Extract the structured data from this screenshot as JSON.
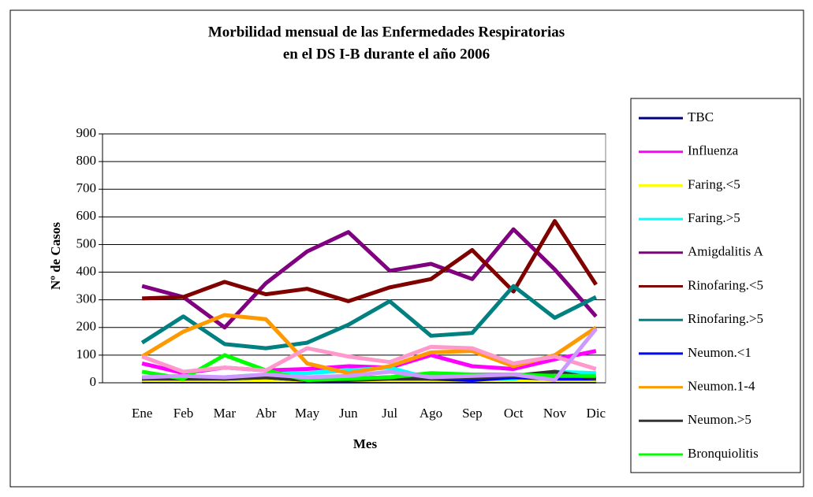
{
  "chart_data": {
    "type": "line",
    "title": "Morbilidad mensual de las Enfermedades Respiratorias",
    "subtitle": "en el DS I-B durante el año 2006",
    "x_label": "Mes",
    "y_label": "Nº de Casos",
    "categories": [
      "Ene",
      "Feb",
      "Mar",
      "Abr",
      "May",
      "Jun",
      "Jul",
      "Ago",
      "Sep",
      "Oct",
      "Nov",
      "Dic"
    ],
    "ylim": [
      0,
      900
    ],
    "yticks": [
      0,
      100,
      200,
      300,
      400,
      500,
      600,
      700,
      800,
      900
    ],
    "grid": true,
    "legend": "right",
    "series": [
      {
        "name": "TBC",
        "color": "#000080",
        "values": [
          5,
          5,
          5,
          5,
          5,
          5,
          5,
          5,
          5,
          5,
          5,
          5
        ]
      },
      {
        "name": "Influenza",
        "color": "#ff00ff",
        "values": [
          70,
          35,
          55,
          45,
          50,
          60,
          55,
          100,
          60,
          50,
          85,
          115
        ]
      },
      {
        "name": "Faring.<5",
        "color": "#ffff00",
        "values": [
          10,
          10,
          10,
          10,
          10,
          10,
          10,
          10,
          10,
          10,
          10,
          10
        ]
      },
      {
        "name": "Faring.>5",
        "color": "#00ffff",
        "values": [
          20,
          20,
          20,
          30,
          35,
          45,
          55,
          15,
          15,
          15,
          40,
          35
        ]
      },
      {
        "name": "Amigdalitis  A",
        "color": "#800080",
        "values": [
          350,
          310,
          200,
          360,
          475,
          545,
          405,
          430,
          375,
          555,
          410,
          240
        ]
      },
      {
        "name": "Rinofaring.<5",
        "color": "#800000",
        "values": [
          305,
          310,
          365,
          320,
          340,
          295,
          345,
          375,
          480,
          330,
          585,
          355
        ]
      },
      {
        "name": "Rinofaring.>5",
        "color": "#008080",
        "values": [
          145,
          240,
          140,
          125,
          145,
          210,
          295,
          170,
          180,
          350,
          235,
          310
        ]
      },
      {
        "name": "Neumon.<1",
        "color": "#0000ff",
        "values": [
          15,
          20,
          15,
          20,
          10,
          15,
          20,
          15,
          10,
          20,
          15,
          15
        ]
      },
      {
        "name": "Neumon.1-4",
        "color": "#ff9900",
        "values": [
          95,
          185,
          245,
          230,
          70,
          35,
          60,
          110,
          115,
          60,
          100,
          200
        ]
      },
      {
        "name": "Neumon.>5",
        "color": "#333333",
        "values": [
          15,
          15,
          15,
          20,
          10,
          10,
          15,
          15,
          20,
          25,
          40,
          15
        ]
      },
      {
        "name": "Bronquiolitis",
        "color": "#00ff00",
        "values": [
          40,
          15,
          100,
          45,
          10,
          15,
          20,
          35,
          30,
          30,
          25,
          25
        ]
      },
      {
        "color": "#ff99cc",
        "values": [
          95,
          40,
          55,
          45,
          125,
          95,
          75,
          130,
          125,
          70,
          95,
          50
        ]
      },
      {
        "color": "#cc99ff",
        "values": [
          20,
          25,
          20,
          30,
          20,
          25,
          40,
          20,
          25,
          30,
          10,
          195
        ]
      }
    ]
  }
}
